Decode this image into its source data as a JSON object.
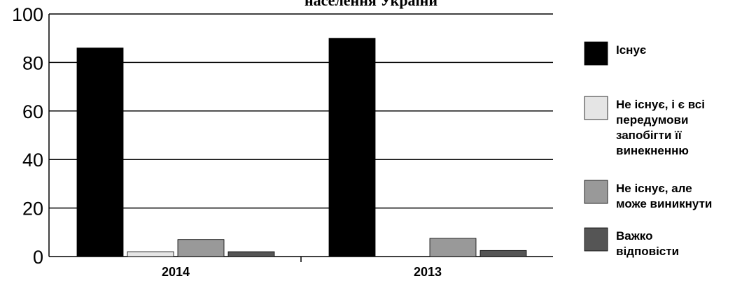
{
  "chart_data": {
    "type": "bar",
    "title": "населення України",
    "categories": [
      "2014",
      "2013"
    ],
    "ylim": [
      0,
      100
    ],
    "yticks": [
      0,
      20,
      40,
      60,
      80,
      100
    ],
    "grid": true,
    "legend_position": "right",
    "series": [
      {
        "name": "Існує",
        "color": "#000000",
        "values": [
          86,
          90
        ]
      },
      {
        "name": "Не існує, і є всі передумови запобігти її винекненню",
        "color": "#e5e5e5",
        "values": [
          2,
          0
        ]
      },
      {
        "name": "Не існує, але може виникнути",
        "color": "#999999",
        "values": [
          7,
          7.5
        ]
      },
      {
        "name": "Важко відповісти",
        "color": "#555555",
        "values": [
          2,
          2.5
        ]
      }
    ],
    "legend_lines": [
      [
        "Існує"
      ],
      [
        "Не існує, і є всі",
        "передумови",
        "запобігти її",
        "винекненню"
      ],
      [
        "Не існує, але",
        "може виникнути"
      ],
      [
        "Важко",
        "відповісти"
      ]
    ]
  }
}
